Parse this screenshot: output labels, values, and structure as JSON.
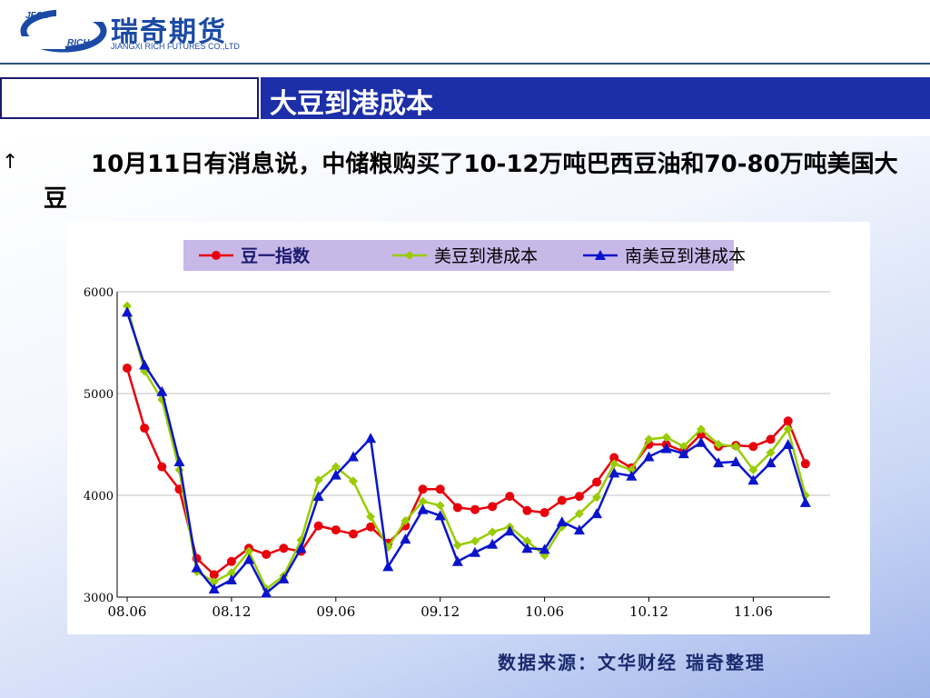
{
  "header": {
    "logo_jfco": "JFCO",
    "logo_rich": "RICH",
    "company_name": "瑞奇期货",
    "company_sub": "JIANGXI RICH FUTURES CO.,LTD"
  },
  "slide": {
    "title": "大豆到港成本",
    "bullet": "↑",
    "paragraph": "10月11日有消息说，中储粮购买了10-12万吨巴西豆油和70-80万吨美国大豆",
    "source": "数据来源：文华财经  瑞奇整理"
  },
  "colors": {
    "title_bar": "#1c2fa8",
    "series_red": "#e8000b",
    "series_green": "#99cc00",
    "series_blue": "#0a14cc",
    "legend_bg": "#c8b8e8"
  },
  "chart_data": {
    "type": "line",
    "ylim": [
      3000,
      6000
    ],
    "yticks": [
      "3000",
      "4000",
      "5000",
      "6000"
    ],
    "xticks": [
      {
        "label": "08.06",
        "index": 0
      },
      {
        "label": "08.12",
        "index": 6
      },
      {
        "label": "09.06",
        "index": 12
      },
      {
        "label": "09.12",
        "index": 18
      },
      {
        "label": "10.06",
        "index": 24
      },
      {
        "label": "10.12",
        "index": 30
      },
      {
        "label": "11.06",
        "index": 36
      }
    ],
    "grid": "horizontal",
    "legend_position": "top",
    "series": [
      {
        "name": "豆一指数",
        "marker": "circle",
        "values": [
          5250,
          4660,
          4280,
          4060,
          3380,
          3220,
          3350,
          3480,
          3420,
          3480,
          3450,
          3700,
          3660,
          3620,
          3690,
          3530,
          3700,
          4060,
          4060,
          3880,
          3860,
          3890,
          3990,
          3850,
          3830,
          3950,
          3990,
          4130,
          4370,
          4270,
          4500,
          4500,
          4430,
          4600,
          4480,
          4490,
          4480,
          4550,
          4730,
          4310
        ]
      },
      {
        "name": "美豆到港成本",
        "marker": "diamond",
        "values": [
          5860,
          5220,
          4940,
          4250,
          3250,
          3150,
          3240,
          3450,
          3080,
          3210,
          3560,
          4150,
          4280,
          4140,
          3790,
          3490,
          3750,
          3940,
          3900,
          3510,
          3550,
          3640,
          3690,
          3550,
          3410,
          3690,
          3820,
          3980,
          4310,
          4250,
          4550,
          4570,
          4480,
          4650,
          4500,
          4480,
          4250,
          4420,
          4650,
          4000
        ]
      },
      {
        "name": "南美豆到港成本",
        "marker": "triangle",
        "values": [
          5800,
          5280,
          5020,
          4330,
          3290,
          3080,
          3170,
          3370,
          3040,
          3180,
          3480,
          3990,
          4200,
          4380,
          4560,
          3300,
          3570,
          3860,
          3800,
          3350,
          3440,
          3520,
          3650,
          3480,
          3470,
          3740,
          3660,
          3820,
          4220,
          4190,
          4380,
          4460,
          4410,
          4520,
          4320,
          4330,
          4150,
          4320,
          4500,
          3930
        ]
      }
    ]
  }
}
